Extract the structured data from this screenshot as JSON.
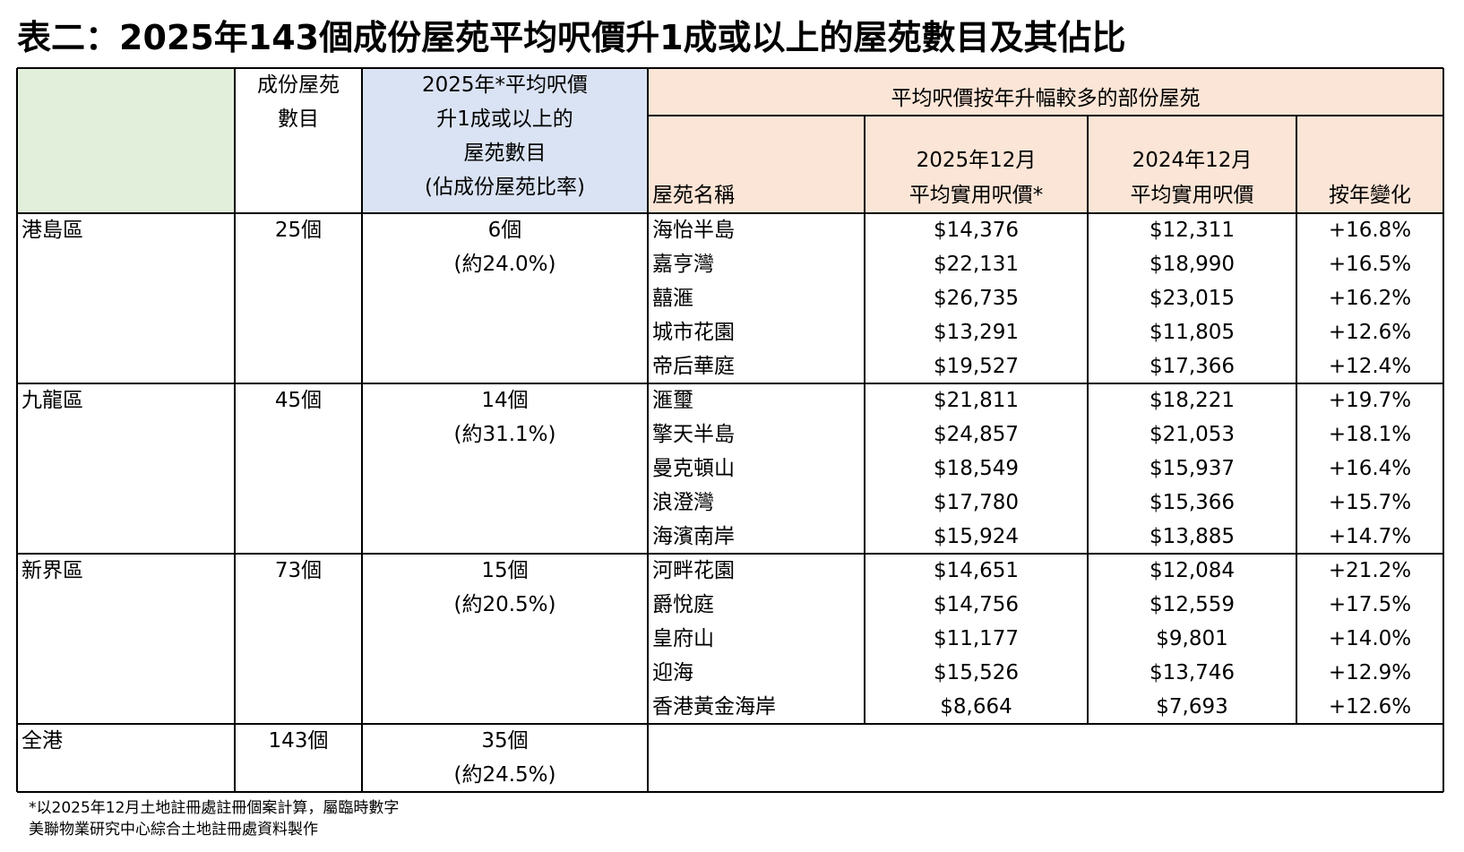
{
  "header": {
    "title": "表二：2025年143個成份屋苑平均呎價升1成或以上的屋苑數目及其佔比"
  },
  "table": {
    "headers": {
      "components": [
        "成份屋苑",
        "數目"
      ],
      "qualifying": [
        "2025年*平均呎價",
        "升1成或以上的",
        "屋苑數目",
        "(佔成份屋苑比率)"
      ],
      "group": "平均呎價按年升幅較多的部份屋苑",
      "estate_name": "屋苑名稱",
      "price_2025": [
        "2025年12月",
        "平均實用呎價*"
      ],
      "price_2024": [
        "2024年12月",
        "平均實用呎價"
      ],
      "change": "按年變化"
    },
    "regions": [
      {
        "name": "港島區",
        "count": "25個",
        "qualifying": "6個",
        "ratio": "(約24.0%)",
        "estates": [
          [
            "海怡半島",
            "$14,376",
            "$12,311",
            "+16.8%"
          ],
          [
            "嘉亨灣",
            "$22,131",
            "$18,990",
            "+16.5%"
          ],
          [
            "囍滙",
            "$26,735",
            "$23,015",
            "+16.2%"
          ],
          [
            "城市花園",
            "$13,291",
            "$11,805",
            "+12.6%"
          ],
          [
            "帝后華庭",
            "$19,527",
            "$17,366",
            "+12.4%"
          ]
        ]
      },
      {
        "name": "九龍區",
        "count": "45個",
        "qualifying": "14個",
        "ratio": "(約31.1%)",
        "estates": [
          [
            "滙璽",
            "$21,811",
            "$18,221",
            "+19.7%"
          ],
          [
            "擎天半島",
            "$24,857",
            "$21,053",
            "+18.1%"
          ],
          [
            "曼克頓山",
            "$18,549",
            "$15,937",
            "+16.4%"
          ],
          [
            "浪澄灣",
            "$17,780",
            "$15,366",
            "+15.7%"
          ],
          [
            "海濱南岸",
            "$15,924",
            "$13,885",
            "+14.7%"
          ]
        ]
      },
      {
        "name": "新界區",
        "count": "73個",
        "qualifying": "15個",
        "ratio": "(約20.5%)",
        "estates": [
          [
            "河畔花園",
            "$14,651",
            "$12,084",
            "+21.2%"
          ],
          [
            "爵悅庭",
            "$14,756",
            "$12,559",
            "+17.5%"
          ],
          [
            "皇府山",
            "$11,177",
            "$9,801",
            "+14.0%"
          ],
          [
            "迎海",
            "$15,526",
            "$13,746",
            "+12.9%"
          ],
          [
            "香港黃金海岸",
            "$8,664",
            "$7,693",
            "+12.6%"
          ]
        ]
      },
      {
        "name": "全港",
        "count": "143個",
        "qualifying": "35個",
        "ratio": "(約24.5%)",
        "estates": []
      }
    ]
  },
  "footer": {
    "notes": [
      "*以2025年12月土地註冊處註冊個案計算，屬臨時數字",
      "美聯物業研究中心綜合土地註冊處資料製作"
    ]
  }
}
